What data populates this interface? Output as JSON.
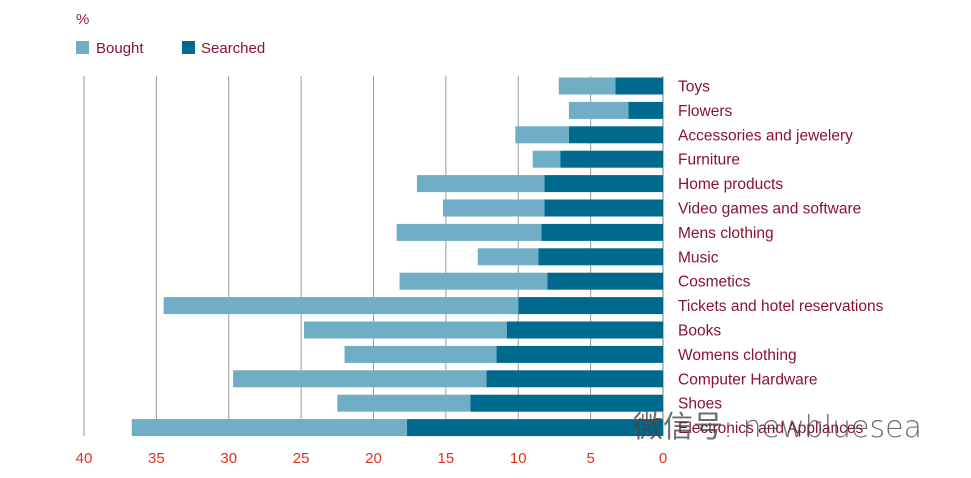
{
  "chart_data": {
    "type": "bar",
    "orientation": "horizontal",
    "stacked": true,
    "unit_label": "%",
    "categories": [
      "Toys",
      "Flowers",
      "Accessories and jewelery",
      "Furniture",
      "Home products",
      "Video games and software",
      "Mens clothing",
      "Music",
      "Cosmetics",
      "Tickets and hotel reservations",
      "Books",
      "Womens clothing",
      "Computer Hardware",
      "Shoes",
      "Electronics and Appliances"
    ],
    "series": [
      {
        "name": "Searched",
        "color": "#006a8e",
        "values": [
          3.3,
          2.4,
          6.5,
          7.1,
          8.2,
          8.2,
          8.4,
          8.6,
          8.0,
          10.0,
          10.8,
          11.5,
          12.2,
          13.3,
          17.7
        ]
      },
      {
        "name": "Bought",
        "color": "#70aec6",
        "values": [
          3.9,
          4.1,
          3.7,
          1.9,
          8.8,
          7.0,
          10.0,
          4.2,
          10.2,
          24.5,
          14.0,
          10.5,
          17.5,
          9.2,
          19.0
        ]
      }
    ],
    "legend": [
      {
        "name": "Bought",
        "color": "#70aec6"
      },
      {
        "name": "Searched",
        "color": "#006a8e"
      }
    ],
    "legend_position": "top-left",
    "x_axis": {
      "reversed": true,
      "range": [
        0,
        40
      ],
      "ticks": [
        "40",
        "35",
        "30",
        "25",
        "20",
        "15",
        "10",
        "5",
        "0"
      ],
      "grid": true
    },
    "category_axis_position": "right",
    "colors": {
      "label_red": "#8b1230",
      "tick_red": "#e0301e",
      "unit_red": "#a0183a",
      "grid": "#9a9a9a"
    }
  },
  "watermark": "微信号: newbluesea"
}
